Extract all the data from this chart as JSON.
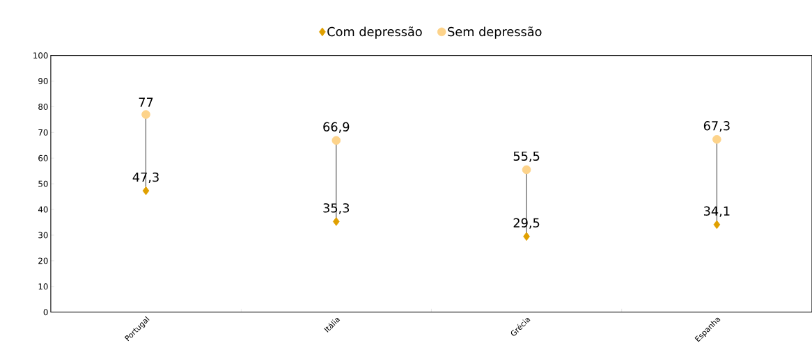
{
  "chart_data": {
    "type": "scatter",
    "categories": [
      "Portugal",
      "Itália",
      "Grécia",
      "Espanha"
    ],
    "series": [
      {
        "name": "Com depressão",
        "color": "#e0a000",
        "marker": "diamond",
        "values": [
          47.3,
          35.3,
          29.5,
          34.1
        ],
        "value_labels": [
          "47,3",
          "35,3",
          "29,5",
          "34,1"
        ]
      },
      {
        "name": "Sem depressão",
        "color": "#fdd38a",
        "marker": "circle",
        "values": [
          77,
          66.9,
          55.5,
          67.3
        ],
        "value_labels": [
          "77",
          "66,9",
          "55,5",
          "67,3"
        ]
      },
      {
        "type": "line",
        "color": "#000000",
        "marker": "none",
        "x": [
          "Portugal",
          "Portugal"
        ],
        "values": [
          47.3,
          77
        ]
      },
      {
        "type": "line",
        "color": "#000000",
        "marker": "none",
        "x": [
          "Itália",
          "Itália"
        ],
        "values": [
          35.3,
          66.9
        ]
      },
      {
        "type": "line",
        "color": "#000000",
        "marker": "none",
        "x": [
          "Grécia",
          "Grécia"
        ],
        "values": [
          29.5,
          55.5
        ]
      },
      {
        "type": "line",
        "color": "#000000",
        "marker": "none",
        "x": [
          "Espanha",
          "Espanha"
        ],
        "values": [
          34.1,
          67.3
        ]
      }
    ],
    "ylim": [
      0,
      100
    ],
    "yticks": [
      0,
      10,
      20,
      30,
      40,
      50,
      60,
      70,
      80,
      90,
      100
    ],
    "grid": false,
    "legend": "top"
  }
}
